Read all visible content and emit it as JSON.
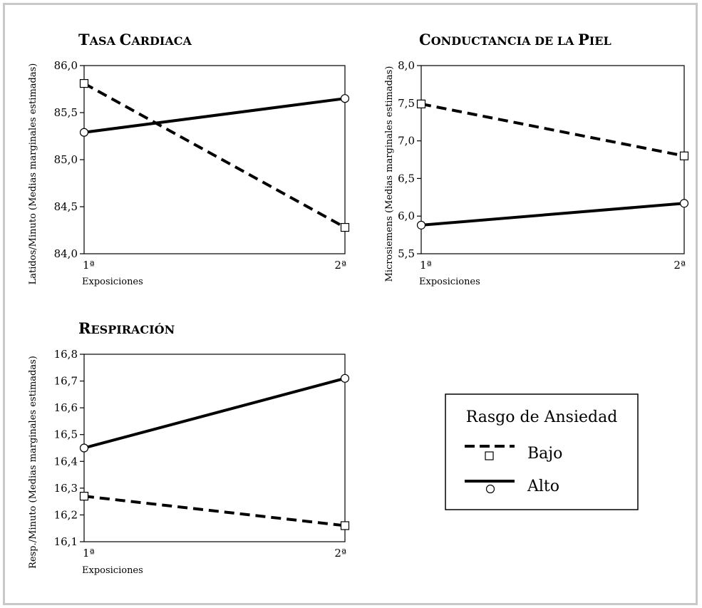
{
  "chart_data": [
    {
      "type": "line",
      "title": "Tasa Cardiaca",
      "title_parts": [
        {
          "t": "T",
          "sc": false
        },
        {
          "t": "ASA ",
          "sc": true
        },
        {
          "t": "C",
          "sc": false
        },
        {
          "t": "ARDIACA",
          "sc": true
        }
      ],
      "xlabel": "Exposiciones",
      "ylabel": "Latidos/Minuto (Medias marginales estimadas)",
      "categories": [
        "1ª",
        "2ª"
      ],
      "yticks": [
        "84,0",
        "84,5",
        "85,0",
        "85,5",
        "86,0"
      ],
      "ytick_values": [
        84.0,
        84.5,
        85.0,
        85.5,
        86.0
      ],
      "ylim": [
        84.0,
        86.0
      ],
      "series": [
        {
          "name": "Bajo",
          "values": [
            85.81,
            84.28
          ]
        },
        {
          "name": "Alto",
          "values": [
            85.29,
            85.65
          ]
        }
      ]
    },
    {
      "type": "line",
      "title": "Conductancia de la Piel",
      "title_parts": [
        {
          "t": "C",
          "sc": false
        },
        {
          "t": "ONDUCTANCIA DE LA ",
          "sc": true
        },
        {
          "t": "P",
          "sc": false
        },
        {
          "t": "IEL",
          "sc": true
        }
      ],
      "xlabel": "Exposiciones",
      "ylabel": "Microsiemens (Medias marginales estimadas)",
      "categories": [
        "1ª",
        "2ª"
      ],
      "yticks": [
        "5,5",
        "6,0",
        "6,5",
        "7,0",
        "7,5",
        "8,0"
      ],
      "ytick_values": [
        5.5,
        6.0,
        6.5,
        7.0,
        7.5,
        8.0
      ],
      "ylim": [
        5.5,
        8.0
      ],
      "series": [
        {
          "name": "Bajo",
          "values": [
            7.49,
            6.8
          ]
        },
        {
          "name": "Alto",
          "values": [
            5.88,
            6.17
          ]
        }
      ]
    },
    {
      "type": "line",
      "title": "Respiración",
      "title_parts": [
        {
          "t": "R",
          "sc": false
        },
        {
          "t": "ESPIRACIÓN",
          "sc": true
        }
      ],
      "xlabel": "Exposiciones",
      "ylabel": "Resp./Minuto (Medias marginales estimadas)",
      "categories": [
        "1ª",
        "2ª"
      ],
      "yticks": [
        "16,1",
        "16,2",
        "16,3",
        "16,4",
        "16,5",
        "16,6",
        "16,7",
        "16,8"
      ],
      "ytick_values": [
        16.1,
        16.2,
        16.3,
        16.4,
        16.5,
        16.6,
        16.7,
        16.8
      ],
      "ylim": [
        16.1,
        16.8
      ],
      "series": [
        {
          "name": "Bajo",
          "values": [
            16.27,
            16.16
          ]
        },
        {
          "name": "Alto",
          "values": [
            16.45,
            16.71
          ]
        }
      ]
    }
  ],
  "legend": {
    "title": "Rasgo de Ansiedad",
    "items": [
      {
        "label": "Bajo",
        "line": "dashed",
        "marker": "square"
      },
      {
        "label": "Alto",
        "line": "solid",
        "marker": "circle"
      }
    ]
  }
}
